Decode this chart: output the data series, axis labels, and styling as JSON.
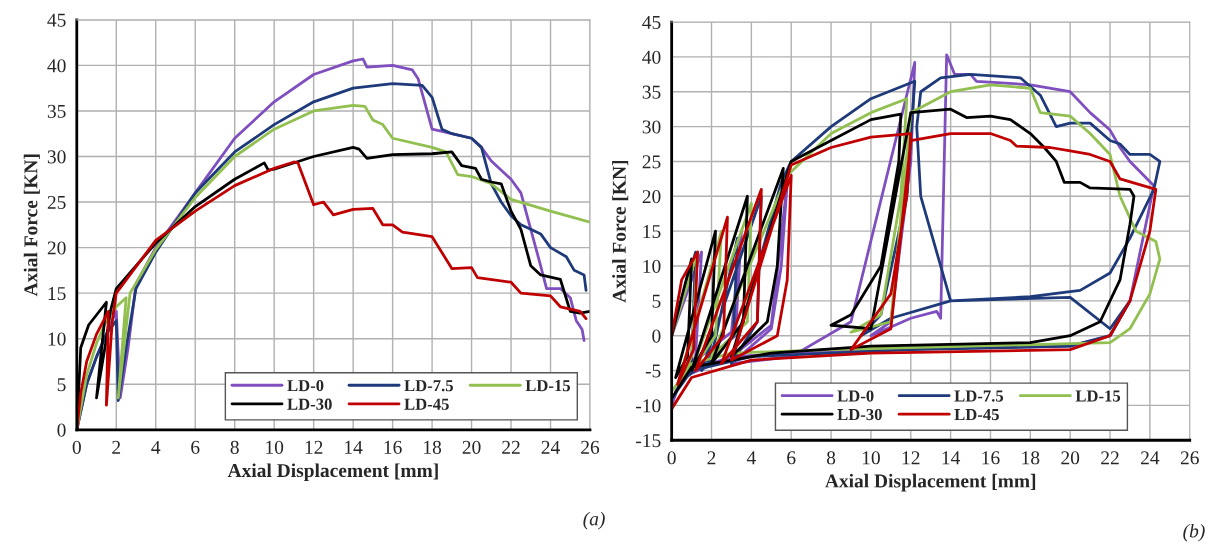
{
  "chart_data": [
    {
      "type": "line",
      "xlabel": "Axial Displacement [mm]",
      "ylabel": "Axial Force [KN]",
      "xlim": [
        0,
        26
      ],
      "ylim": [
        0,
        45
      ],
      "xticks": [
        0,
        2,
        4,
        6,
        8,
        10,
        12,
        14,
        16,
        18,
        20,
        22,
        24,
        26
      ],
      "yticks": [
        0,
        5,
        10,
        15,
        20,
        25,
        30,
        35,
        40,
        45
      ],
      "grid": true,
      "legend": "bottom right",
      "annotations": [
        "(a)"
      ],
      "series": [
        {
          "name": "LD-0",
          "color": "#7f4fbf",
          "x": [
            0,
            0.5,
            1,
            1.5,
            2,
            2.2,
            2.6,
            3,
            4,
            6,
            8,
            10,
            12,
            14,
            14.5,
            14.7,
            16,
            17,
            17.3,
            18,
            19,
            20,
            20.5,
            21,
            22,
            22.5,
            23,
            23.5,
            23.8,
            24.5,
            25,
            25.3,
            25.6,
            25.7
          ],
          "values": [
            0,
            5,
            8,
            10.5,
            13,
            3.5,
            9,
            16,
            20,
            26,
            32,
            36,
            39,
            40.5,
            40.7,
            39.8,
            40,
            39.5,
            38.5,
            33,
            32.5,
            32,
            31,
            29.5,
            27.5,
            26,
            22,
            18,
            15.5,
            15.5,
            14.5,
            12,
            11,
            9.8
          ]
        },
        {
          "name": "LD-7.5",
          "color": "#1f3a7a",
          "x": [
            0,
            0.5,
            1,
            1.5,
            2,
            2.1,
            2.5,
            3,
            4,
            6,
            8,
            10,
            12,
            14,
            16,
            17.5,
            18,
            18.5,
            19,
            20,
            20.5,
            21,
            21.5,
            22,
            22.5,
            23,
            23.5,
            24,
            24.8,
            25.2,
            25.7,
            25.8
          ],
          "values": [
            0,
            5,
            8,
            10.5,
            12,
            3.2,
            9,
            15.5,
            19.5,
            26,
            30.5,
            33.5,
            36,
            37.5,
            38,
            37.8,
            36.5,
            33,
            32.5,
            32,
            31,
            27,
            25,
            23.5,
            22.5,
            22,
            21.5,
            20,
            19,
            17.5,
            17,
            15.3
          ]
        },
        {
          "name": "LD-15",
          "color": "#92c050",
          "x": [
            0,
            0.5,
            1,
            1.5,
            2,
            2.5,
            2.1,
            2.7,
            4,
            6,
            8,
            10,
            12,
            14,
            14.6,
            15,
            15.5,
            16,
            18,
            18.7,
            19.3,
            20,
            21,
            22,
            24,
            26
          ],
          "values": [
            0,
            6,
            9.5,
            12,
            13.5,
            14.5,
            3.5,
            15,
            19.8,
            25.5,
            30,
            33,
            35,
            35.6,
            35.5,
            34,
            33.5,
            32,
            31,
            30.5,
            28,
            27.8,
            27,
            25.3,
            24,
            22.8
          ]
        },
        {
          "name": "LD-30",
          "color": "#000000",
          "x": [
            0,
            0.2,
            0.6,
            1.5,
            1,
            1.5,
            1.7,
            2,
            4,
            6,
            8,
            9.5,
            9.7,
            10,
            12,
            14,
            14.3,
            14.7,
            16,
            18,
            19,
            19.5,
            20.2,
            20.5,
            21,
            21.5,
            22,
            22.5,
            23,
            23.5,
            24.5,
            25,
            25.5,
            26
          ],
          "values": [
            0,
            9,
            11.5,
            14,
            3.5,
            10,
            13,
            15.5,
            20.5,
            24.5,
            27.5,
            29.3,
            28.5,
            28.6,
            30,
            31,
            30.8,
            29.8,
            30.2,
            30.3,
            30.5,
            29,
            28.7,
            27.5,
            27.2,
            27,
            24,
            22,
            18,
            17,
            16.5,
            13,
            12.8,
            13
          ]
        },
        {
          "name": "LD-45",
          "color": "#c00000",
          "x": [
            0,
            0.2,
            0.5,
            1,
            1.6,
            1.5,
            1.8,
            2,
            4,
            6,
            8,
            10,
            11,
            11.2,
            12,
            12.5,
            13,
            14,
            15,
            15.5,
            16,
            16.5,
            18,
            19,
            20,
            20.3,
            22,
            22.5,
            24,
            24.5,
            25.5,
            25.8
          ],
          "values": [
            0,
            4,
            7.5,
            10.5,
            13,
            2.7,
            12,
            15,
            20.8,
            24,
            26.8,
            28.7,
            29.4,
            29.3,
            24.7,
            25,
            23.6,
            24.2,
            24.3,
            22.5,
            22.5,
            21.7,
            21.2,
            17.7,
            17.8,
            16.7,
            16.2,
            15,
            14.7,
            13.5,
            13,
            12.2
          ]
        }
      ]
    },
    {
      "type": "line",
      "xlabel": "Axial Displacement [mm]",
      "ylabel": "Axial Force [KN]",
      "xlim": [
        0,
        26
      ],
      "ylim": [
        -15,
        45
      ],
      "xticks": [
        0,
        2,
        4,
        6,
        8,
        10,
        12,
        14,
        16,
        18,
        20,
        22,
        24,
        26
      ],
      "yticks": [
        -15,
        -10,
        -5,
        0,
        5,
        10,
        15,
        20,
        25,
        30,
        35,
        40,
        45
      ],
      "grid": true,
      "legend": "bottom",
      "annotations": [
        "(b)"
      ],
      "series": [
        {
          "name": "LD-0",
          "color": "#7f4fbf",
          "x": [
            0,
            1.5,
            1.2,
            0.2,
            1,
            3,
            3.5,
            3.2,
            1,
            3,
            5,
            5.8,
            5.5,
            5,
            3,
            6,
            9,
            12.2,
            12,
            11,
            10,
            12,
            13.3,
            13.5,
            13.8,
            14.2,
            15,
            15.3,
            18,
            20,
            21,
            22,
            22.5,
            23,
            24.2,
            23,
            22,
            20,
            10,
            3,
            0.5,
            0
          ],
          "values": [
            0,
            12,
            -3,
            -8,
            -4,
            0.5,
            15,
            0,
            -5,
            -3,
            1.5,
            22,
            10,
            1,
            -4,
            -3,
            2,
            39.2,
            25,
            2,
            0,
            2.5,
            3.5,
            2.5,
            40.3,
            37.5,
            37.5,
            36.5,
            36,
            35,
            32,
            29.5,
            27,
            25,
            21.5,
            5,
            0,
            -1.5,
            -2,
            -3,
            -6,
            -10
          ]
        },
        {
          "name": "LD-7.5",
          "color": "#1f3a7a",
          "x": [
            0,
            1.2,
            1,
            0.3,
            2,
            3.3,
            3.1,
            1.5,
            4.5,
            4.3,
            3,
            5.5,
            6,
            8,
            10,
            12.2,
            11.8,
            10.5,
            9.5,
            11,
            14,
            18,
            20.5,
            22,
            23,
            24.2,
            24.5,
            24,
            23,
            22.5,
            22,
            21,
            20,
            19.3,
            18.5,
            17.5,
            15,
            13.5,
            12.5,
            12.3,
            12.5,
            14,
            20,
            22,
            23,
            22,
            20,
            12,
            4,
            1,
            0
          ],
          "values": [
            0,
            12,
            -4,
            -7,
            -3,
            14,
            0,
            -5,
            20,
            2,
            -4,
            22,
            25,
            30,
            34,
            36.5,
            20,
            3,
            0,
            2.5,
            5,
            5.6,
            6.5,
            9,
            14,
            21,
            25,
            26,
            26,
            27.5,
            28,
            30.5,
            30.5,
            30,
            34.5,
            37,
            37.5,
            37,
            35,
            30,
            20,
            5,
            5.5,
            1,
            5,
            0,
            -1.5,
            -2,
            -3,
            -5,
            -9
          ]
        },
        {
          "name": "LD-15",
          "color": "#92c050",
          "x": [
            0,
            1.3,
            1,
            0.3,
            2.5,
            2.2,
            1,
            4,
            3.8,
            2,
            5.8,
            8,
            10,
            11.8,
            11.5,
            10.5,
            9,
            11,
            12,
            14,
            16,
            18,
            18.5,
            20,
            21,
            22,
            22.5,
            23.3,
            24.3,
            24.5,
            24,
            23,
            22,
            15,
            8,
            3,
            1,
            0
          ],
          "values": [
            0,
            12,
            -3,
            -7,
            15,
            0,
            -5,
            19,
            2,
            -3,
            23,
            29,
            32,
            34,
            20,
            3,
            0.5,
            2,
            32,
            35,
            36,
            35.5,
            32,
            31.5,
            29,
            26,
            20,
            15,
            13.5,
            11,
            6,
            1,
            -1,
            -1.5,
            -2,
            -2.5,
            -4,
            -8
          ]
        },
        {
          "name": "LD-30",
          "color": "#000000",
          "x": [
            0,
            1,
            0.8,
            0.2,
            2.2,
            2,
            1,
            3.8,
            3.6,
            2,
            5.6,
            5.3,
            4.8,
            3,
            6,
            8,
            10,
            11.5,
            11.4,
            10.5,
            9,
            8,
            10,
            12,
            14,
            14.8,
            16,
            17,
            18,
            18.7,
            19.3,
            19.7,
            20.5,
            21,
            23,
            23.2,
            23,
            22.5,
            21.5,
            20,
            18,
            10,
            5,
            1,
            0
          ],
          "values": [
            0,
            11,
            -3,
            -6,
            15,
            0,
            -5,
            20,
            2,
            -4,
            24,
            10,
            2,
            -3,
            25,
            28,
            31,
            31.8,
            25,
            10,
            3,
            1.5,
            1,
            32,
            32.5,
            31.3,
            31.5,
            31,
            29,
            27,
            25,
            22,
            22,
            21.2,
            21,
            20,
            16,
            8,
            2,
            0,
            -1,
            -1.5,
            -2.5,
            -4.5,
            -9
          ]
        },
        {
          "name": "LD-45",
          "color": "#c00000",
          "x": [
            0,
            0.5,
            1.3,
            1.1,
            0.3,
            2.8,
            2.6,
            1.2,
            4.5,
            4.3,
            2.5,
            6,
            5.8,
            5.3,
            3,
            6,
            8,
            10,
            12,
            11.8,
            11,
            10,
            9,
            11,
            12,
            13,
            14,
            16,
            17,
            17.3,
            19,
            20,
            21,
            22,
            22.5,
            24.3,
            24,
            23,
            22,
            20,
            10,
            4,
            1,
            0
          ],
          "values": [
            0,
            8,
            12,
            -2,
            -7,
            17,
            0,
            -5,
            21,
            2,
            -4,
            23,
            8,
            0,
            -3.5,
            24.5,
            27,
            28.5,
            29,
            20,
            6,
            2,
            -2,
            1,
            28,
            28.5,
            29,
            29,
            28,
            27.2,
            27,
            26.5,
            26,
            25,
            22.5,
            21,
            15,
            5,
            0,
            -2,
            -2.5,
            -3.5,
            -6,
            -10.5
          ]
        }
      ]
    }
  ]
}
